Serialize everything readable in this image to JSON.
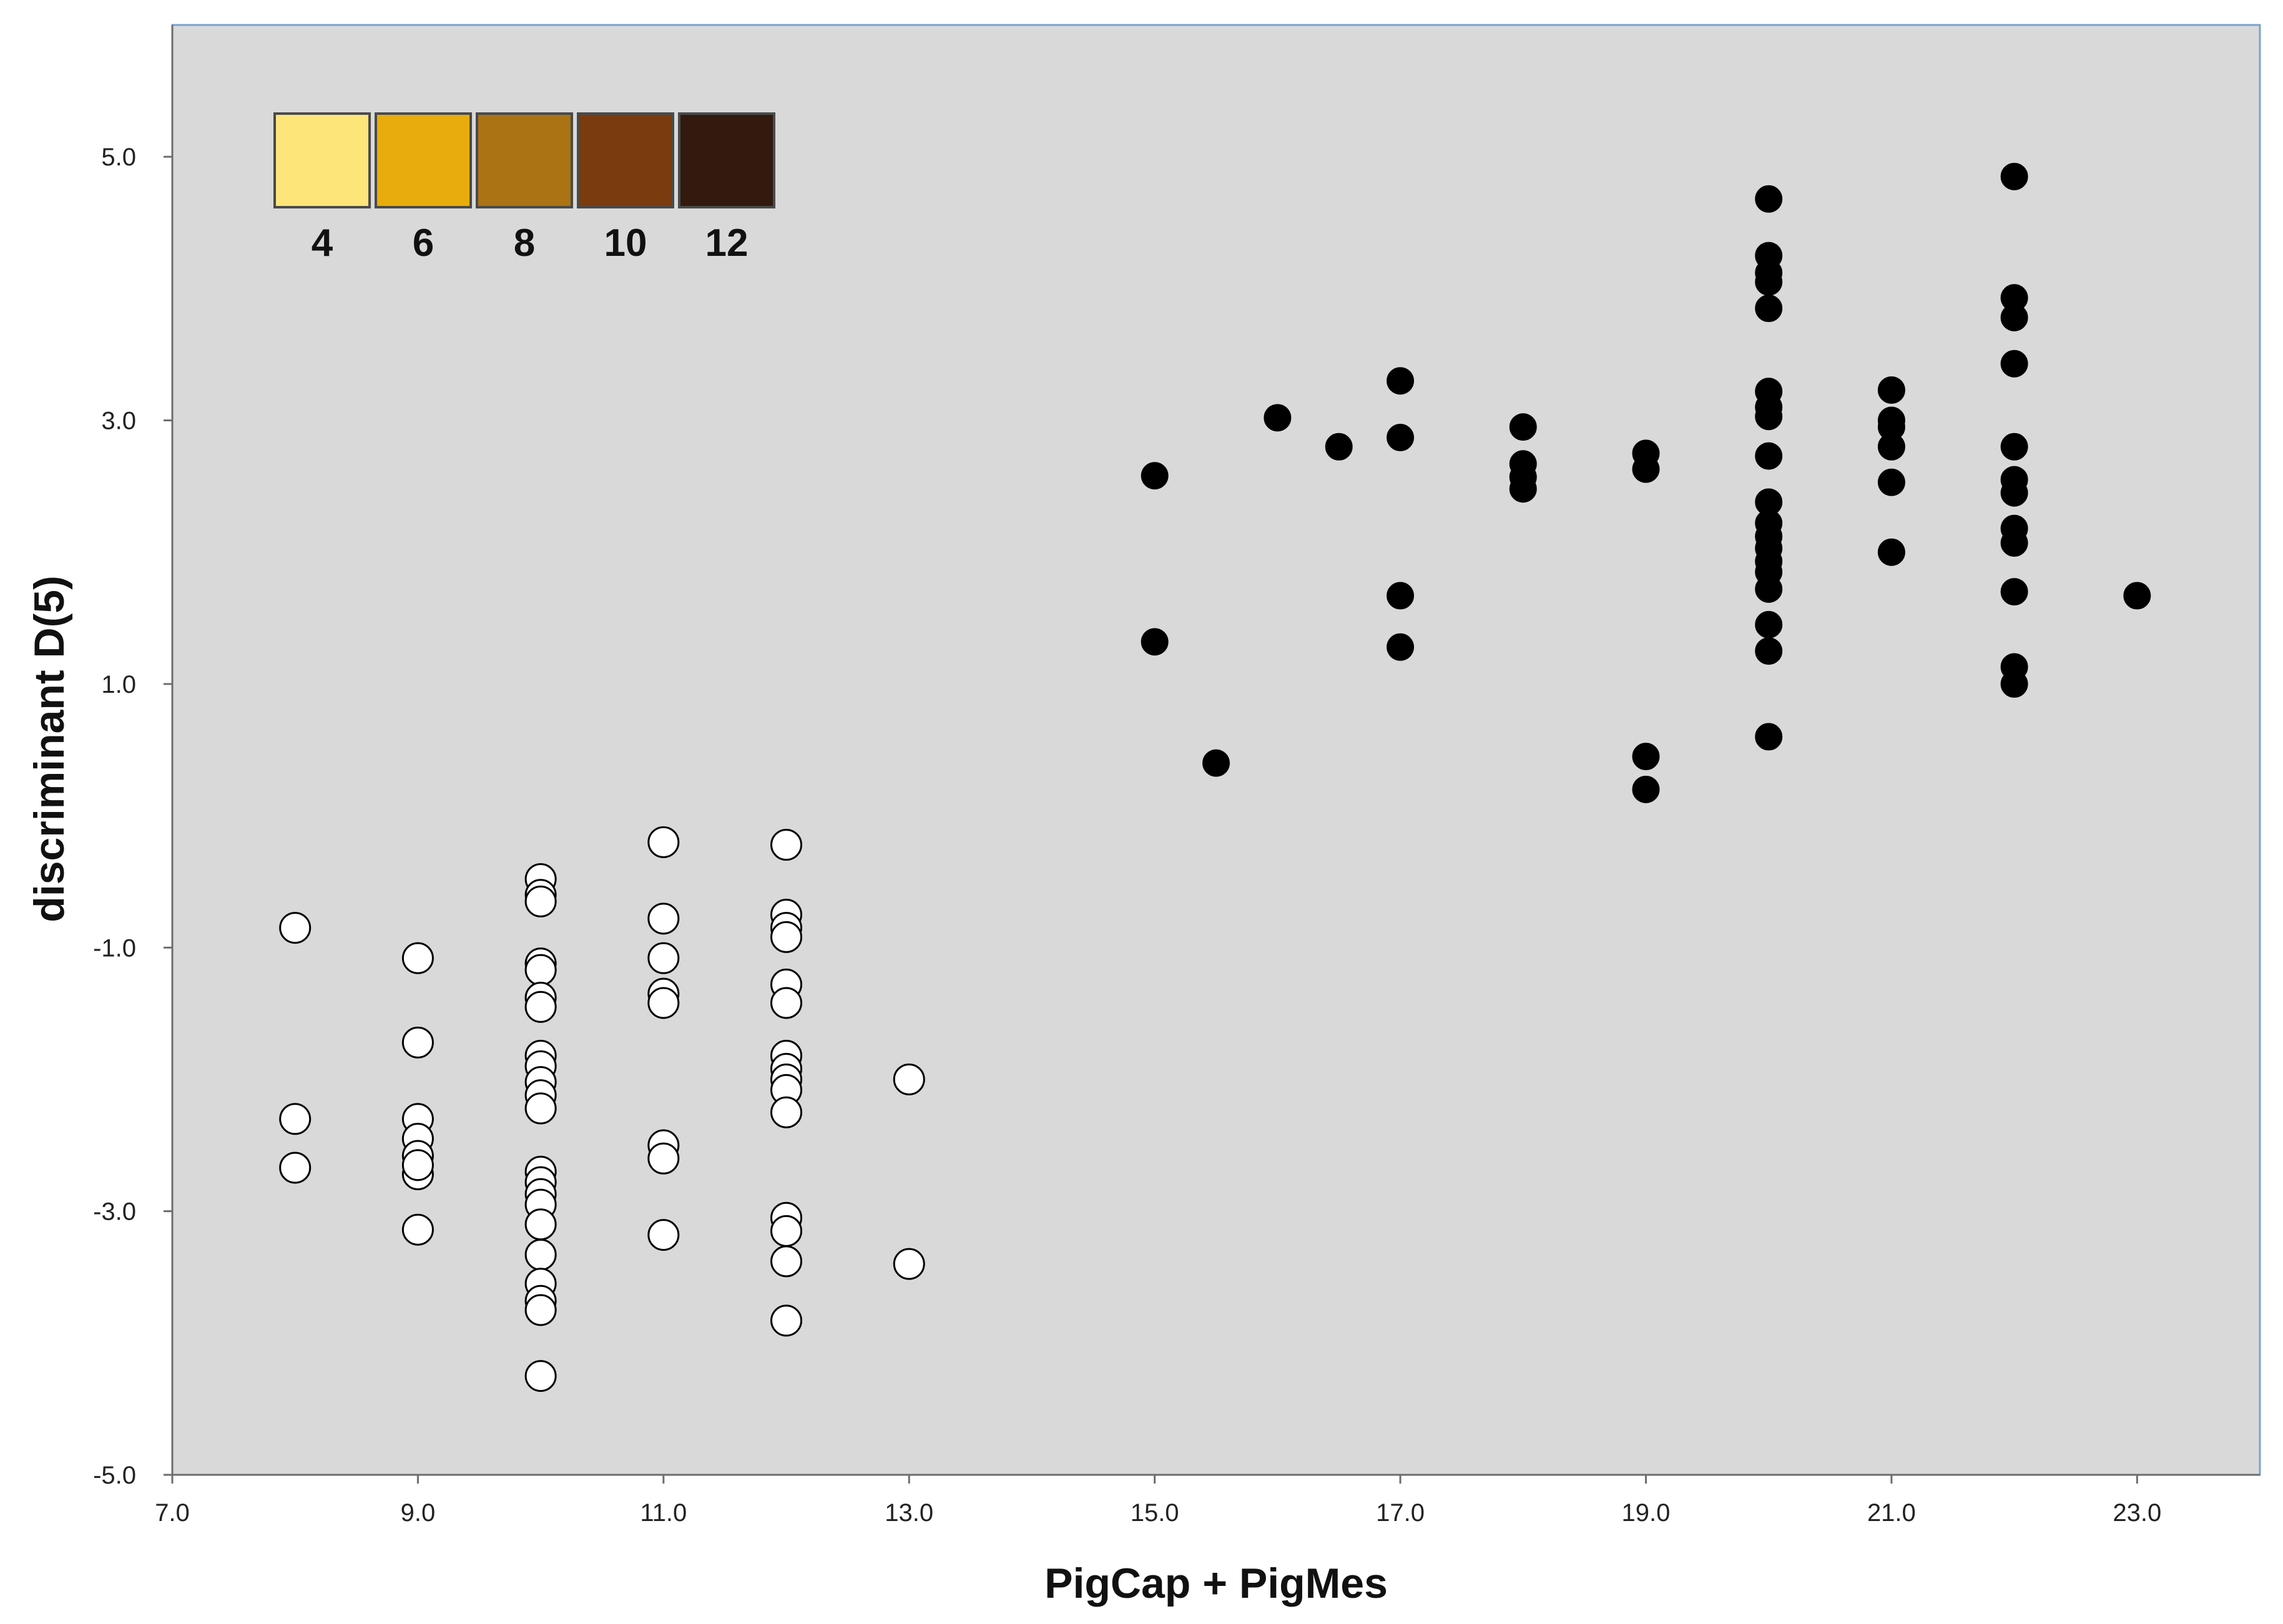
{
  "chart_data": {
    "type": "scatter",
    "title": "",
    "xlabel": "PigCap + PigMes",
    "ylabel": "discriminant D(5)",
    "xlim": [
      7.0,
      24.0
    ],
    "ylim": [
      -5.0,
      6.0
    ],
    "x_ticks": [
      "7.0",
      "9.0",
      "11.0",
      "13.0",
      "15.0",
      "17.0",
      "19.0",
      "21.0",
      "23.0"
    ],
    "y_ticks": [
      "5.0",
      "3.0",
      "1.0",
      "-1.0",
      "-3.0",
      "-5.0"
    ],
    "grid": false,
    "background_color": "#d9d9d9",
    "legend": {
      "placement": "top-left",
      "items": [
        {
          "label": "4",
          "color": "#fde57a"
        },
        {
          "label": "6",
          "color": "#e8ad0c"
        },
        {
          "label": "8",
          "color": "#ab7313"
        },
        {
          "label": "10",
          "color": "#7a3b0f"
        },
        {
          "label": "12",
          "color": "#321a0e"
        }
      ]
    },
    "series": [
      {
        "marker": "open-circle",
        "color": "#ffffff",
        "points": [
          [
            8,
            -0.85
          ],
          [
            8,
            -2.3
          ],
          [
            8,
            -2.67
          ],
          [
            9,
            -1.08
          ],
          [
            9,
            -1.72
          ],
          [
            9,
            -2.3
          ],
          [
            9,
            -2.45
          ],
          [
            9,
            -2.58
          ],
          [
            9,
            -2.72
          ],
          [
            9,
            -2.65
          ],
          [
            9,
            -3.14
          ],
          [
            10,
            -0.48
          ],
          [
            10,
            -0.6
          ],
          [
            10,
            -0.65
          ],
          [
            10,
            -1.12
          ],
          [
            10,
            -1.17
          ],
          [
            10,
            -1.38
          ],
          [
            10,
            -1.45
          ],
          [
            10,
            -1.82
          ],
          [
            10,
            -1.9
          ],
          [
            10,
            -2.02
          ],
          [
            10,
            -2.12
          ],
          [
            10,
            -2.22
          ],
          [
            10,
            -2.7
          ],
          [
            10,
            -2.78
          ],
          [
            10,
            -2.87
          ],
          [
            10,
            -2.95
          ],
          [
            10,
            -3.1
          ],
          [
            10,
            -3.33
          ],
          [
            10,
            -3.55
          ],
          [
            10,
            -3.68
          ],
          [
            10,
            -3.75
          ],
          [
            10,
            -4.25
          ],
          [
            11,
            -0.2
          ],
          [
            11,
            -0.78
          ],
          [
            11,
            -1.08
          ],
          [
            11,
            -1.35
          ],
          [
            11,
            -1.42
          ],
          [
            11,
            -2.5
          ],
          [
            11,
            -2.6
          ],
          [
            11,
            -3.18
          ],
          [
            12,
            -0.22
          ],
          [
            12,
            -0.75
          ],
          [
            12,
            -0.85
          ],
          [
            12,
            -0.92
          ],
          [
            12,
            -1.28
          ],
          [
            12,
            -1.42
          ],
          [
            12,
            -1.82
          ],
          [
            12,
            -1.92
          ],
          [
            12,
            -2.0
          ],
          [
            12,
            -2.08
          ],
          [
            12,
            -2.25
          ],
          [
            12,
            -3.05
          ],
          [
            12,
            -3.15
          ],
          [
            12,
            -3.38
          ],
          [
            12,
            -3.83
          ],
          [
            13,
            -2.0
          ],
          [
            13,
            -3.4
          ]
        ]
      },
      {
        "marker": "filled-circle",
        "color": "#000000",
        "points": [
          [
            15,
            2.58
          ],
          [
            15,
            1.32
          ],
          [
            15.5,
            0.4
          ],
          [
            16,
            3.02
          ],
          [
            16.5,
            2.8
          ],
          [
            17,
            3.3
          ],
          [
            17,
            2.87
          ],
          [
            17,
            1.67
          ],
          [
            17,
            1.28
          ],
          [
            18,
            2.95
          ],
          [
            18,
            2.67
          ],
          [
            18,
            2.57
          ],
          [
            18,
            2.48
          ],
          [
            19,
            2.75
          ],
          [
            19,
            2.63
          ],
          [
            19,
            0.45
          ],
          [
            19,
            0.2
          ],
          [
            20,
            4.68
          ],
          [
            20,
            4.25
          ],
          [
            20,
            4.12
          ],
          [
            20,
            4.05
          ],
          [
            20,
            3.85
          ],
          [
            20,
            3.22
          ],
          [
            20,
            3.1
          ],
          [
            20,
            3.03
          ],
          [
            20,
            2.73
          ],
          [
            20,
            2.38
          ],
          [
            20,
            2.22
          ],
          [
            20,
            2.12
          ],
          [
            20,
            2.03
          ],
          [
            20,
            1.93
          ],
          [
            20,
            1.85
          ],
          [
            20,
            1.72
          ],
          [
            20,
            1.45
          ],
          [
            20,
            1.25
          ],
          [
            20,
            0.6
          ],
          [
            21,
            3.23
          ],
          [
            21,
            3.0
          ],
          [
            21,
            2.95
          ],
          [
            21,
            2.8
          ],
          [
            21,
            2.53
          ],
          [
            21,
            2.0
          ],
          [
            22,
            4.85
          ],
          [
            22,
            3.93
          ],
          [
            22,
            3.78
          ],
          [
            22,
            3.43
          ],
          [
            22,
            2.8
          ],
          [
            22,
            2.55
          ],
          [
            22,
            2.45
          ],
          [
            22,
            2.18
          ],
          [
            22,
            2.07
          ],
          [
            22,
            1.7
          ],
          [
            22,
            1.13
          ],
          [
            22,
            1.0
          ],
          [
            23,
            1.67
          ]
        ]
      }
    ]
  }
}
